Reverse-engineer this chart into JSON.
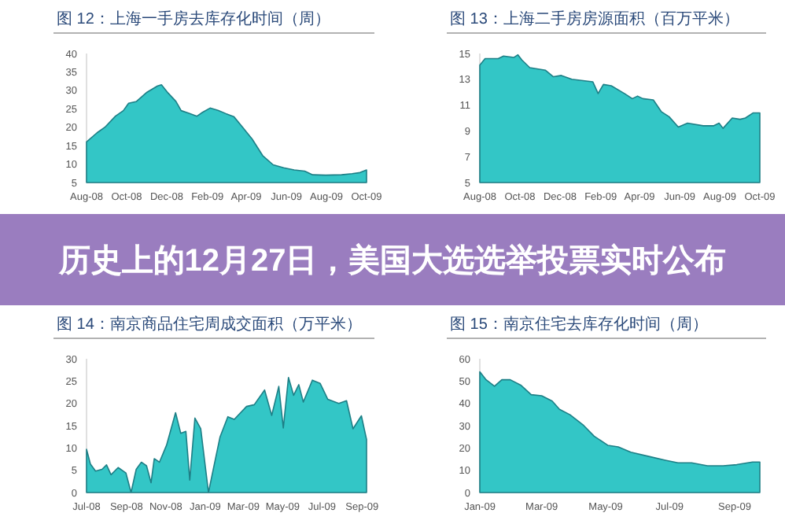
{
  "chart_data": [
    {
      "type": "area",
      "title": "图 12：上海一手房去库存化时间（周）",
      "color": "#33c6c6",
      "xlim": [
        "2008-08-01",
        "2009-10-01"
      ],
      "ylim": [
        5,
        40
      ],
      "yticks": [
        5,
        10,
        15,
        20,
        25,
        30,
        35,
        40
      ],
      "xticks": [
        {
          "value": "2008-08-01",
          "label": "Aug-08"
        },
        {
          "value": "2008-10-01",
          "label": "Oct-08"
        },
        {
          "value": "2008-12-01",
          "label": "Dec-08"
        },
        {
          "value": "2009-02-01",
          "label": "Feb-09"
        },
        {
          "value": "2009-04-01",
          "label": "Apr-09"
        },
        {
          "value": "2009-06-01",
          "label": "Jun-09"
        },
        {
          "value": "2009-08-01",
          "label": "Aug-09"
        },
        {
          "value": "2009-10-01",
          "label": "Oct-09"
        }
      ],
      "x": [
        "2008-08-01",
        "2008-08-17",
        "2008-08-29",
        "2008-09-14",
        "2008-09-26",
        "2008-10-04",
        "2008-10-16",
        "2008-11-01",
        "2008-11-17",
        "2008-11-23",
        "2008-12-03",
        "2008-12-15",
        "2008-12-23",
        "2009-01-04",
        "2009-01-16",
        "2009-01-24",
        "2009-02-05",
        "2009-02-17",
        "2009-03-01",
        "2009-03-13",
        "2009-03-25",
        "2009-04-10",
        "2009-04-26",
        "2009-05-12",
        "2009-05-28",
        "2009-06-13",
        "2009-06-29",
        "2009-07-11",
        "2009-07-31",
        "2009-08-24",
        "2009-09-09",
        "2009-09-21",
        "2009-10-01"
      ],
      "values": [
        16,
        18.5,
        20,
        23,
        24.5,
        26.5,
        27,
        29.5,
        31.2,
        31.5,
        29.3,
        27,
        24.5,
        23.8,
        23,
        24,
        25.2,
        24.6,
        23.7,
        22.9,
        20.3,
        16.8,
        12.3,
        9.8,
        9,
        8.4,
        8.1,
        7.1,
        7,
        7.1,
        7.4,
        7.7,
        8.4
      ]
    },
    {
      "type": "area",
      "title": "图 13：上海二手房房源面积（百万平米）",
      "color": "#33c6c6",
      "xlim": [
        "2008-08-01",
        "2009-10-01"
      ],
      "ylim": [
        5,
        15
      ],
      "yticks": [
        5,
        7,
        9,
        11,
        13,
        15
      ],
      "xticks": [
        {
          "value": "2008-08-01",
          "label": "Aug-08"
        },
        {
          "value": "2008-10-01",
          "label": "Oct-08"
        },
        {
          "value": "2008-12-01",
          "label": "Dec-08"
        },
        {
          "value": "2009-02-01",
          "label": "Feb-09"
        },
        {
          "value": "2009-04-01",
          "label": "Apr-09"
        },
        {
          "value": "2009-06-01",
          "label": "Jun-09"
        },
        {
          "value": "2009-08-01",
          "label": "Aug-09"
        },
        {
          "value": "2009-10-01",
          "label": "Oct-09"
        }
      ],
      "x": [
        "2008-08-01",
        "2008-08-09",
        "2008-08-29",
        "2008-09-06",
        "2008-09-22",
        "2008-09-28",
        "2008-10-04",
        "2008-10-16",
        "2008-11-09",
        "2008-11-21",
        "2008-12-03",
        "2008-12-19",
        "2009-01-20",
        "2009-01-28",
        "2009-02-05",
        "2009-02-17",
        "2009-03-09",
        "2009-03-21",
        "2009-03-29",
        "2009-04-06",
        "2009-04-22",
        "2009-05-04",
        "2009-05-16",
        "2009-05-30",
        "2009-06-13",
        "2009-07-07",
        "2009-07-23",
        "2009-07-31",
        "2009-08-06",
        "2009-08-20",
        "2009-09-01",
        "2009-09-09",
        "2009-09-21",
        "2009-10-01"
      ],
      "values": [
        14.1,
        14.6,
        14.6,
        14.8,
        14.7,
        14.9,
        14.5,
        13.9,
        13.7,
        13.2,
        13.3,
        13,
        12.8,
        11.9,
        12.6,
        12.5,
        11.9,
        11.5,
        11.7,
        11.5,
        11.4,
        10.5,
        10.1,
        9.3,
        9.6,
        9.4,
        9.4,
        9.6,
        9.2,
        10,
        9.9,
        10,
        10.4,
        10.4
      ]
    },
    {
      "type": "other",
      "title": "历史上的12月27日，美国大选选举投票实时公布",
      "color": "#9a7dbf"
    },
    {
      "type": "area",
      "title": "图 14：南京商品住宅周成交面积（万平米）",
      "color": "#33c6c6",
      "xlim": [
        "2008-07-01",
        "2009-09-08"
      ],
      "ylim": [
        0,
        30
      ],
      "yticks": [
        0,
        5,
        10,
        15,
        20,
        25,
        30
      ],
      "xticks": [
        {
          "value": "2008-07-01",
          "label": "Jul-08"
        },
        {
          "value": "2008-09-01",
          "label": "Sep-08"
        },
        {
          "value": "2008-11-01",
          "label": "Nov-08"
        },
        {
          "value": "2009-01-01",
          "label": "Jan-09"
        },
        {
          "value": "2009-03-01",
          "label": "Mar-09"
        },
        {
          "value": "2009-05-01",
          "label": "May-09"
        },
        {
          "value": "2009-07-01",
          "label": "Jul-09"
        },
        {
          "value": "2009-09-01",
          "label": "Sep-09"
        }
      ],
      "x": [
        "2008-07-01",
        "2008-07-07",
        "2008-07-15",
        "2008-07-25",
        "2008-08-01",
        "2008-08-08",
        "2008-08-19",
        "2008-08-31",
        "2008-09-08",
        "2008-09-16",
        "2008-09-24",
        "2008-10-02",
        "2008-10-09",
        "2008-10-14",
        "2008-10-22",
        "2008-11-02",
        "2008-11-16",
        "2008-11-24",
        "2008-12-02",
        "2008-12-08",
        "2008-12-16",
        "2008-12-25",
        "2009-01-06",
        "2009-01-16",
        "2009-01-24",
        "2009-02-05",
        "2009-02-15",
        "2009-03-06",
        "2009-03-18",
        "2009-04-03",
        "2009-04-14",
        "2009-04-25",
        "2009-05-02",
        "2009-05-10",
        "2009-05-18",
        "2009-05-26",
        "2009-06-02",
        "2009-06-16",
        "2009-06-28",
        "2009-07-10",
        "2009-07-27",
        "2009-08-08",
        "2009-08-18",
        "2009-08-31",
        "2009-09-08"
      ],
      "values": [
        9.7,
        6.4,
        4.8,
        5.2,
        6.2,
        4,
        5.6,
        4.4,
        0,
        5.2,
        6.8,
        6,
        2.2,
        7.6,
        6.8,
        10.6,
        17.9,
        13.3,
        13.7,
        2.8,
        16.7,
        14.3,
        0,
        7,
        12.5,
        17,
        16.4,
        19.3,
        19.7,
        23,
        17.3,
        23.8,
        14.5,
        25.8,
        21.8,
        24.2,
        20.3,
        25.2,
        24.5,
        20.9,
        20,
        20.6,
        14.3,
        17.2,
        11.9
      ]
    },
    {
      "type": "area",
      "title": "图 15：南京住宅去库存化时间（周）",
      "color": "#33c6c6",
      "xlim": [
        "2009-01-01",
        "2009-09-25"
      ],
      "ylim": [
        0,
        60
      ],
      "yticks": [
        0,
        10,
        20,
        30,
        40,
        50,
        60
      ],
      "xticks": [
        {
          "value": "2009-01-01",
          "label": "Jan-09"
        },
        {
          "value": "2009-03-01",
          "label": "Mar-09"
        },
        {
          "value": "2009-05-01",
          "label": "May-09"
        },
        {
          "value": "2009-07-01",
          "label": "Jul-09"
        },
        {
          "value": "2009-09-01",
          "label": "Sep-09"
        }
      ],
      "x": [
        "2009-01-01",
        "2009-01-07",
        "2009-01-15",
        "2009-01-22",
        "2009-01-30",
        "2009-02-09",
        "2009-02-19",
        "2009-03-01",
        "2009-03-11",
        "2009-03-18",
        "2009-03-28",
        "2009-04-10",
        "2009-04-20",
        "2009-05-03",
        "2009-05-13",
        "2009-05-25",
        "2009-06-12",
        "2009-06-27",
        "2009-07-09",
        "2009-07-22",
        "2009-08-06",
        "2009-08-21",
        "2009-09-03",
        "2009-09-18",
        "2009-09-25"
      ],
      "values": [
        54.2,
        50.6,
        47.7,
        50.6,
        50.6,
        48.2,
        43.9,
        43.4,
        41,
        37.3,
        34.9,
        30.1,
        25.3,
        21.2,
        20.5,
        18.1,
        16.1,
        14.5,
        13.3,
        13.3,
        12,
        12,
        12.5,
        13.7,
        13.7
      ]
    }
  ]
}
